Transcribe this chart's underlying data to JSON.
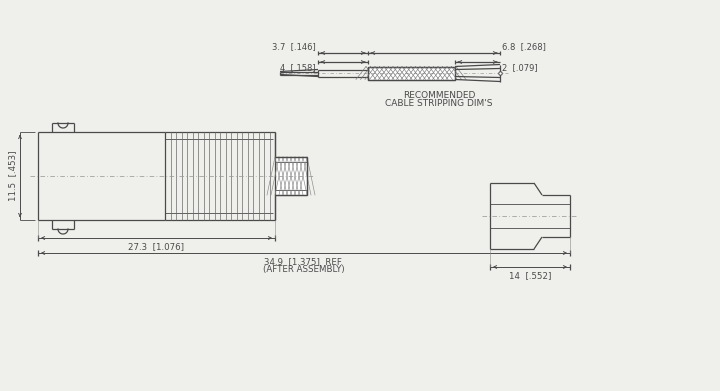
{
  "bg_color": "#efefec",
  "line_color": "#4a4a4a",
  "text_color": "#4a4a4a",
  "figsize": [
    7.2,
    3.91
  ],
  "dpi": 100,
  "annotations": {
    "top_dim1": "3.7  [.146]",
    "top_dim2": "6.8  [.268]",
    "top_dim3": "4  [.158]",
    "top_dim4": "2  [.079]",
    "rec_label1": "RECOMMENDED",
    "rec_label2": "CABLE STRIPPING DIM'S",
    "dim_27": "27.3  [1.076]",
    "dim_34": "34.9  [1.375]  REF.",
    "dim_after": "(AFTER ASSEMBLY)",
    "dim_14": "14  [.552]",
    "dim_11": "11.5  [.453]"
  }
}
